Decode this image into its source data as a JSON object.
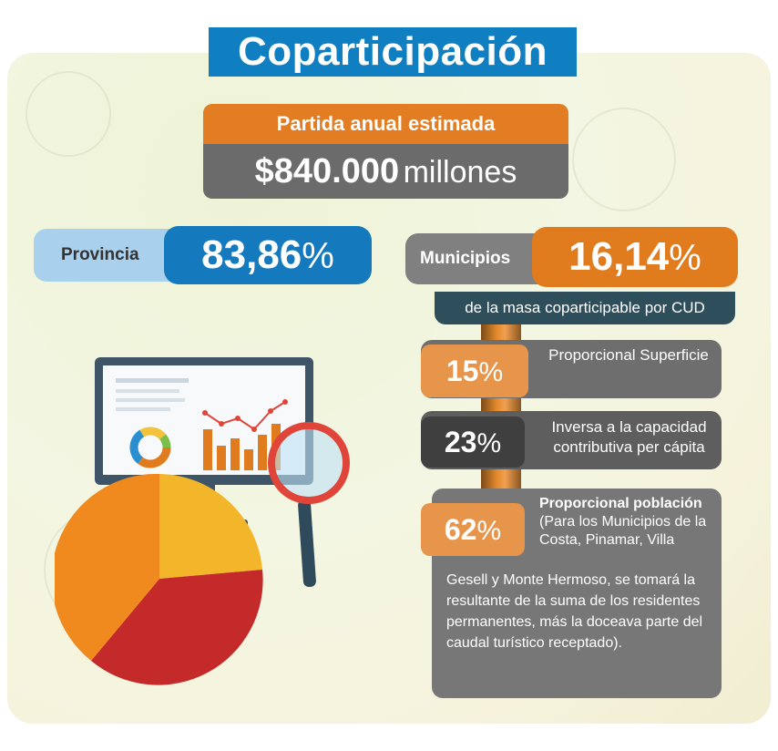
{
  "title": "Coparticipación",
  "partida_label": "Partida anual estimada",
  "amount": {
    "value": "$840.000",
    "unit": "millones"
  },
  "provincia": {
    "label": "Provincia",
    "value": "83,86",
    "pct": "%"
  },
  "municipios": {
    "label": "Municipios",
    "value": "16,14",
    "pct": "%"
  },
  "masa_text": "de la masa coparticipable por CUD",
  "criteria": [
    {
      "value": "15",
      "pct": "%",
      "text": "Proporcional Superficie"
    },
    {
      "value": "23",
      "pct": "%",
      "text": "Inversa a la capacidad contributiva per cápita"
    },
    {
      "value": "62",
      "pct": "%",
      "heading": "Proporcional población",
      "note_a": "(Para los Municipios de la Costa, Pinamar, Villa",
      "note_b": "Gesell y Monte Hermoso, se tomará la resultante de la suma de los residentes permanentes, más la doceava parte del caudal turístico receptado)."
    }
  ],
  "colors": {
    "blue": "#1479bd",
    "orange": "#e07b1e",
    "gray": "#6e6e6e",
    "dark": "#2f4e5c"
  },
  "illustration": {
    "icons": [
      "monitor-icon",
      "bar-chart-icon",
      "donut-chart-icon",
      "magnifier-icon",
      "pie-chart-icon"
    ]
  }
}
